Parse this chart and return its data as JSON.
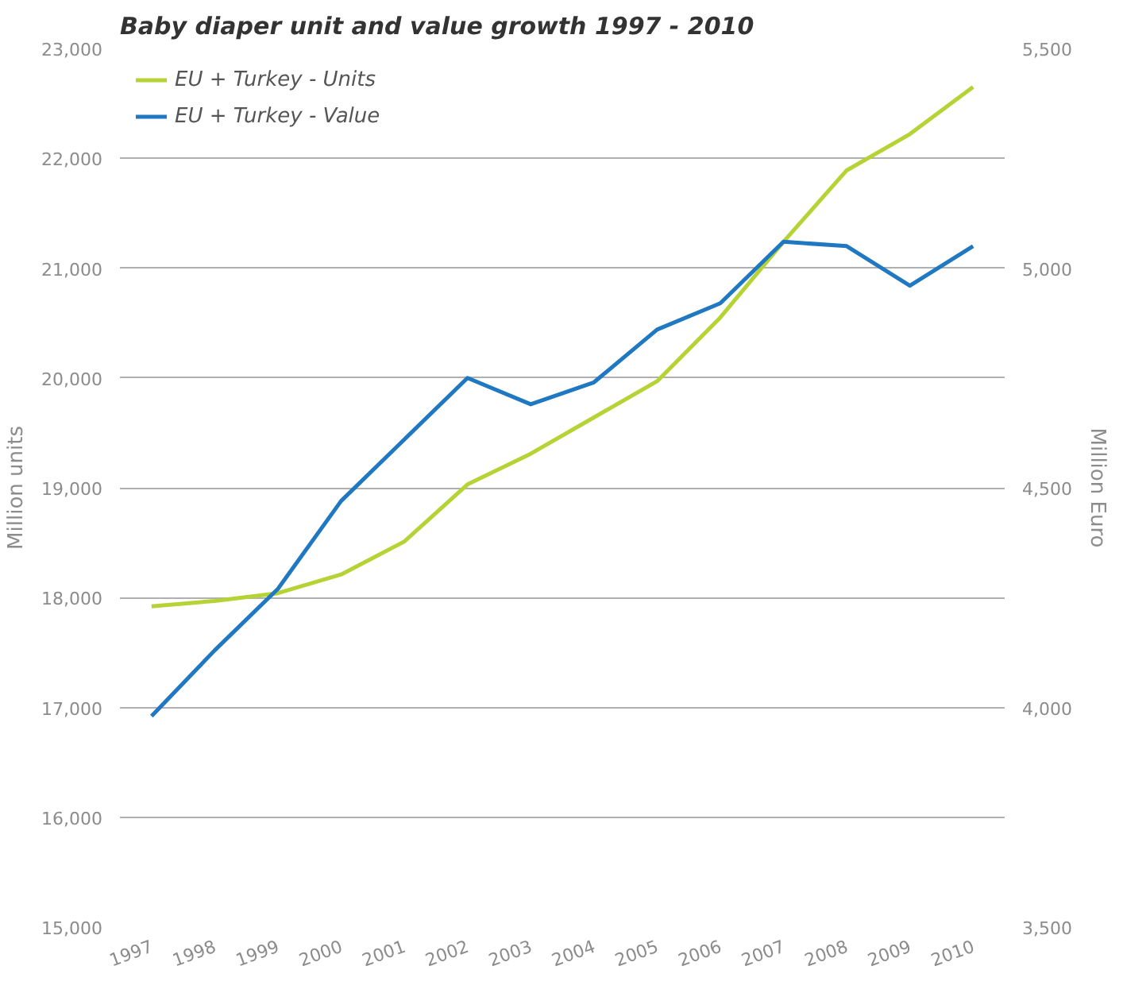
{
  "chart_data": {
    "type": "line",
    "title": "Baby diaper unit and value growth 1997 - 2010",
    "categories": [
      "1997",
      "1998",
      "1999",
      "2000",
      "2001",
      "2002",
      "2003",
      "2004",
      "2005",
      "2006",
      "2007",
      "2008",
      "2009",
      "2010"
    ],
    "series": [
      {
        "name": "EU + Turkey - Units",
        "color": "#b5d334",
        "values": [
          17920,
          17970,
          18040,
          18210,
          18510,
          19030,
          19310,
          19640,
          19970,
          20550,
          21240,
          21890,
          22220,
          22650
        ]
      },
      {
        "name": "EU + Turkey - Value",
        "color": "#1f78c1",
        "axis": "y2",
        "values": [
          3980,
          4130,
          4270,
          4470,
          4610,
          4750,
          4690,
          4740,
          4860,
          4920,
          5060,
          5050,
          4960,
          5050
        ]
      }
    ],
    "ylabel": "Million units",
    "y2label": "Million Euro",
    "ylim": [
      15000,
      23000
    ],
    "yticks": [
      {
        "value": 15000,
        "label": "15,000"
      },
      {
        "value": 16000,
        "label": "16,000"
      },
      {
        "value": 17000,
        "label": "17,000"
      },
      {
        "value": 18000,
        "label": "18,000"
      },
      {
        "value": 19000,
        "label": "19,000"
      },
      {
        "value": 20000,
        "label": "20,000"
      },
      {
        "value": 21000,
        "label": "21,000"
      },
      {
        "value": 22000,
        "label": "22,000"
      },
      {
        "value": 23000,
        "label": "23,000"
      }
    ],
    "y2lim": [
      3500,
      5500
    ],
    "y2ticks": [
      {
        "value": 3500,
        "label": "3,500"
      },
      {
        "value": 4000,
        "label": "4,000"
      },
      {
        "value": 4500,
        "label": "4,500"
      },
      {
        "value": 5000,
        "label": "5,000"
      },
      {
        "value": 5500,
        "label": "5,500"
      }
    ],
    "grid": "y",
    "legend": "top left"
  }
}
